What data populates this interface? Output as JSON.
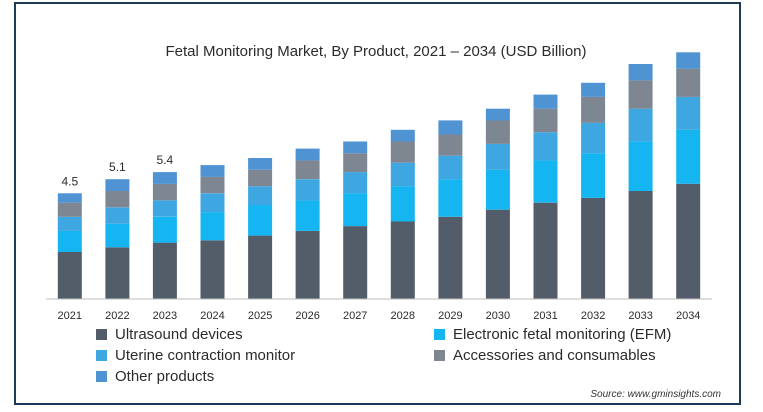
{
  "chart_data": {
    "type": "bar",
    "stacked": true,
    "title": "Fetal Monitoring Market, By Product, 2021 – 2034 (USD Billion)",
    "categories": [
      "2021",
      "2022",
      "2023",
      "2024",
      "2025",
      "2026",
      "2027",
      "2028",
      "2029",
      "2030",
      "2031",
      "2032",
      "2033",
      "2034"
    ],
    "data_labels": [
      "4.5",
      "5.1",
      "5.4",
      "",
      "",
      "",
      "",
      "",
      "",
      "",
      "",
      "",
      "",
      ""
    ],
    "series": [
      {
        "name": "Ultrasound devices",
        "color": "#535c69",
        "values": [
          2.0,
          2.2,
          2.4,
          2.5,
          2.7,
          2.9,
          3.1,
          3.3,
          3.5,
          3.8,
          4.1,
          4.3,
          4.6,
          4.9
        ]
      },
      {
        "name": "Electronic fetal monitoring  (EFM)",
        "color": "#14b5f0",
        "values": [
          0.9,
          1.0,
          1.1,
          1.2,
          1.3,
          1.3,
          1.4,
          1.5,
          1.6,
          1.7,
          1.8,
          1.9,
          2.1,
          2.3
        ]
      },
      {
        "name": "Uterine contraction monitor",
        "color": "#3ea6e0",
        "values": [
          0.6,
          0.7,
          0.7,
          0.8,
          0.8,
          0.9,
          0.9,
          1.0,
          1.0,
          1.1,
          1.2,
          1.3,
          1.4,
          1.4
        ]
      },
      {
        "name": "Accessories and consumables",
        "color": "#7e8691",
        "values": [
          0.6,
          0.7,
          0.7,
          0.7,
          0.7,
          0.8,
          0.8,
          0.9,
          0.9,
          1.0,
          1.0,
          1.1,
          1.2,
          1.2
        ]
      },
      {
        "name": "Other products",
        "color": "#4f93d3",
        "values": [
          0.4,
          0.5,
          0.5,
          0.5,
          0.5,
          0.5,
          0.5,
          0.5,
          0.6,
          0.5,
          0.6,
          0.6,
          0.7,
          0.7
        ]
      }
    ],
    "ylim": [
      0,
      10
    ],
    "legend_position": "bottom"
  },
  "source": "Source: www.gminsights.com"
}
